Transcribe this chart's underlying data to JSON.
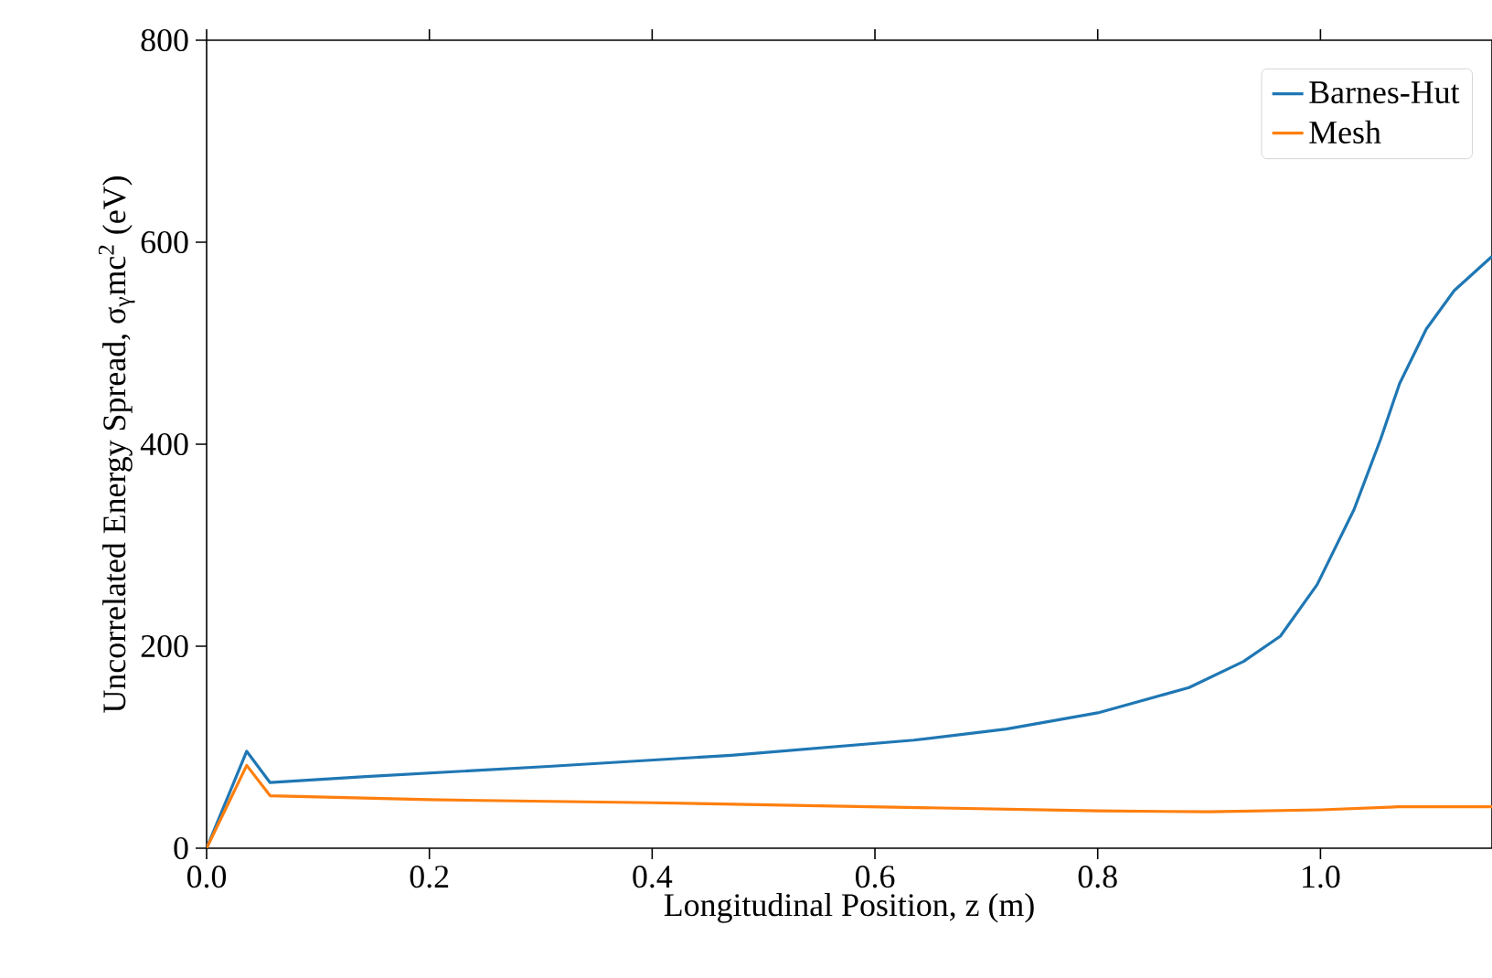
{
  "chart_data": {
    "type": "line",
    "xlabel": "Longitudinal Position, z (m)",
    "ylabel": "Uncorrelated Energy Spread, σ$_{γ}$mc$^{2}$ (eV)",
    "xlim": [
      0,
      1.154
    ],
    "ylim": [
      0,
      800
    ],
    "xticks": [
      {
        "value": 0,
        "label": "0.0"
      },
      {
        "value": 0.2,
        "label": "0.2"
      },
      {
        "value": 0.4,
        "label": "0.4"
      },
      {
        "value": 0.6,
        "label": "0.6"
      },
      {
        "value": 0.8,
        "label": "0.8"
      },
      {
        "value": 1.0,
        "label": "1.0"
      }
    ],
    "yticks": [
      0,
      200,
      400,
      600,
      800
    ],
    "grid": false,
    "legend": "top right",
    "line_style": "solid",
    "series": [
      {
        "name": "Barnes-Hut",
        "color": "#1f77b4",
        "x": [
          0,
          0.036,
          0.057,
          0.143,
          0.307,
          0.471,
          0.635,
          0.718,
          0.8,
          0.882,
          0.931,
          0.964,
          0.997,
          1.03,
          1.054,
          1.071,
          1.095,
          1.12,
          1.154
        ],
        "values": [
          0,
          96,
          65,
          71,
          81,
          92,
          107,
          118,
          134,
          159,
          185,
          210,
          261,
          335,
          405,
          460,
          514,
          552,
          586
        ]
      },
      {
        "name": "Mesh",
        "color": "#ff7f0e",
        "x": [
          0,
          0.036,
          0.057,
          0.2,
          0.4,
          0.6,
          0.8,
          0.9,
          1.0,
          1.07,
          1.154
        ],
        "values": [
          0,
          82,
          52,
          48,
          45,
          41,
          37,
          36,
          38,
          41,
          41
        ]
      }
    ]
  }
}
